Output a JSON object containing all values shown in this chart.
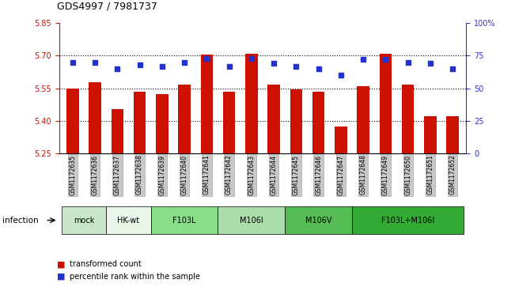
{
  "title": "GDS4997 / 7981737",
  "samples": [
    "GSM1172635",
    "GSM1172636",
    "GSM1172637",
    "GSM1172638",
    "GSM1172639",
    "GSM1172640",
    "GSM1172641",
    "GSM1172642",
    "GSM1172643",
    "GSM1172644",
    "GSM1172645",
    "GSM1172646",
    "GSM1172647",
    "GSM1172648",
    "GSM1172649",
    "GSM1172650",
    "GSM1172651",
    "GSM1172652"
  ],
  "bar_values": [
    5.55,
    5.578,
    5.455,
    5.535,
    5.525,
    5.565,
    5.705,
    5.535,
    5.708,
    5.565,
    5.545,
    5.535,
    5.375,
    5.56,
    5.707,
    5.565,
    5.42,
    5.42
  ],
  "percentile_values": [
    70,
    70,
    65,
    68,
    67,
    70,
    73,
    67,
    73,
    69,
    67,
    65,
    60,
    72,
    72,
    70,
    69,
    65
  ],
  "baseline": 5.25,
  "ylim_left": [
    5.25,
    5.85
  ],
  "ylim_right": [
    0,
    100
  ],
  "yticks_left": [
    5.25,
    5.4,
    5.55,
    5.7,
    5.85
  ],
  "yticks_right": [
    0,
    25,
    50,
    75,
    100
  ],
  "ytick_labels_right": [
    "0",
    "25",
    "50",
    "75",
    "100%"
  ],
  "hlines": [
    5.4,
    5.55,
    5.7
  ],
  "groups": [
    {
      "label": "mock",
      "start": 0,
      "end": 2,
      "color": "#c8e6c8"
    },
    {
      "label": "HK-wt",
      "start": 2,
      "end": 4,
      "color": "#e8f5e8"
    },
    {
      "label": "F103L",
      "start": 4,
      "end": 7,
      "color": "#88dd88"
    },
    {
      "label": "M106I",
      "start": 7,
      "end": 10,
      "color": "#aaddaa"
    },
    {
      "label": "M106V",
      "start": 10,
      "end": 13,
      "color": "#55bb55"
    },
    {
      "label": "F103L+M106I",
      "start": 13,
      "end": 18,
      "color": "#33aa33"
    }
  ],
  "bar_color": "#cc1100",
  "dot_color": "#2233cc",
  "infection_label": "infection",
  "legend_bar": "transformed count",
  "legend_dot": "percentile rank within the sample",
  "left_tick_color": "#cc1100",
  "right_tick_color": "#3333cc"
}
